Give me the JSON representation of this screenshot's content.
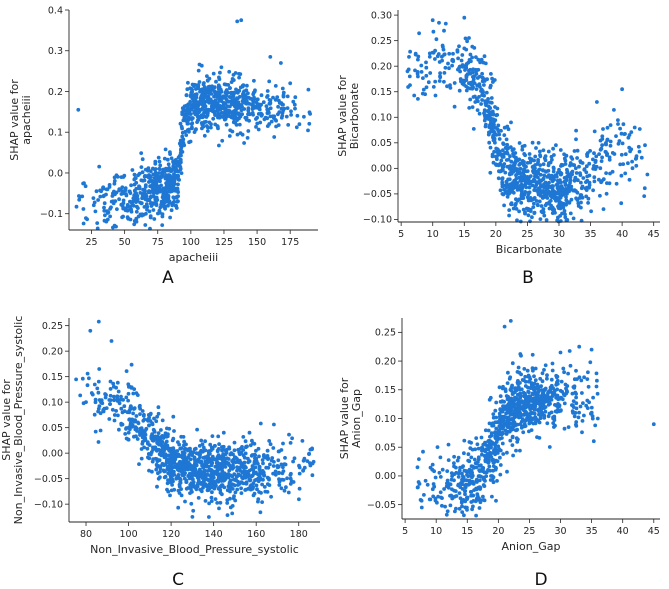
{
  "figure": {
    "point_color": "#1f77d4",
    "axis_color": "#262626",
    "background": "#ffffff"
  },
  "chart_data": [
    {
      "type": "scatter",
      "panel_label": "A",
      "title": "",
      "xlabel": "apacheiii",
      "ylabel": "SHAP value for\napacheiii",
      "ylabel_lines": [
        "SHAP value for",
        "apacheiii"
      ],
      "xlim": [
        8,
        196
      ],
      "ylim": [
        -0.14,
        0.4
      ],
      "xticks": [
        25,
        50,
        75,
        100,
        125,
        150,
        175
      ],
      "yticks": [
        -0.1,
        0.0,
        0.1,
        0.2,
        0.3,
        0.4
      ],
      "xtick_labels": [
        "25",
        "50",
        "75",
        "100",
        "125",
        "150",
        "175"
      ],
      "ytick_labels": [
        "−0.1",
        "0.0",
        "0.1",
        "0.2",
        "0.3",
        "0.4"
      ],
      "grid": false,
      "series": [
        {
          "name": "apacheiii",
          "trend": [
            [
              15,
              -0.06
            ],
            [
              35,
              -0.075
            ],
            [
              55,
              -0.06
            ],
            [
              75,
              -0.04
            ],
            [
              90,
              -0.02
            ],
            [
              96,
              0.15
            ],
            [
              110,
              0.17
            ],
            [
              130,
              0.17
            ],
            [
              160,
              0.16
            ],
            [
              190,
              0.15
            ]
          ],
          "x_range": [
            12,
            190
          ],
          "n_points": 1100,
          "spread": 0.035,
          "outliers": [
            [
              15,
              0.155
            ],
            [
              138,
              0.375
            ],
            [
              135,
              0.372
            ],
            [
              160,
              0.285
            ],
            [
              168,
              0.27
            ],
            [
              175,
              0.22
            ],
            [
              190,
              0.145
            ],
            [
              180,
              0.112
            ]
          ]
        }
      ]
    },
    {
      "type": "scatter",
      "panel_label": "B",
      "title": "",
      "xlabel": "Bicarbonate",
      "ylabel": "SHAP value for\nBicarbonate",
      "ylabel_lines": [
        "SHAP value for",
        "Bicarbonate"
      ],
      "xlim": [
        4.5,
        46
      ],
      "ylim": [
        -0.105,
        0.31
      ],
      "xticks": [
        5,
        10,
        15,
        20,
        25,
        30,
        35,
        40,
        45
      ],
      "yticks": [
        -0.1,
        -0.05,
        0.0,
        0.05,
        0.1,
        0.15,
        0.2,
        0.25,
        0.3
      ],
      "xtick_labels": [
        "5",
        "10",
        "15",
        "20",
        "25",
        "30",
        "35",
        "40",
        "45"
      ],
      "ytick_labels": [
        "−0.10",
        "−0.05",
        "0.00",
        "0.05",
        "0.10",
        "0.15",
        "0.20",
        "0.25",
        "0.30"
      ],
      "grid": false,
      "series": [
        {
          "name": "Bicarbonate",
          "trend": [
            [
              6,
              0.19
            ],
            [
              10,
              0.2
            ],
            [
              15,
              0.2
            ],
            [
              18,
              0.15
            ],
            [
              20,
              0.06
            ],
            [
              22,
              -0.02
            ],
            [
              25,
              -0.035
            ],
            [
              30,
              -0.04
            ],
            [
              35,
              -0.02
            ],
            [
              40,
              0.05
            ],
            [
              44,
              0.0
            ]
          ],
          "x_range": [
            6,
            44
          ],
          "n_points": 1000,
          "spread": 0.035,
          "outliers": [
            [
              15,
              0.295
            ],
            [
              10,
              0.29
            ],
            [
              11,
              0.285
            ],
            [
              6,
              0.19
            ],
            [
              44,
              -0.012
            ],
            [
              40,
              0.155
            ],
            [
              36,
              0.13
            ],
            [
              42,
              0.08
            ],
            [
              41,
              0.06
            ]
          ]
        }
      ]
    },
    {
      "type": "scatter",
      "panel_label": "C",
      "title": "",
      "xlabel": "Non_Invasive_Blood_Pressure_systolic",
      "ylabel": "SHAP value for\nNon_Invasive_Blood_Pressure_systolic",
      "ylabel_lines": [
        "SHAP value for",
        "Non_Invasive_Blood_Pressure_systolic"
      ],
      "xlim": [
        72,
        190
      ],
      "ylim": [
        -0.135,
        0.265
      ],
      "xticks": [
        80,
        100,
        120,
        140,
        160,
        180
      ],
      "yticks": [
        -0.1,
        -0.05,
        0.0,
        0.05,
        0.1,
        0.15,
        0.2,
        0.25
      ],
      "xtick_labels": [
        "80",
        "100",
        "120",
        "140",
        "160",
        "180"
      ],
      "ytick_labels": [
        "−0.10",
        "−0.05",
        "0.00",
        "0.05",
        "0.10",
        "0.15",
        "0.20",
        "0.25"
      ],
      "grid": false,
      "series": [
        {
          "name": "Non_Invasive_Blood_Pressure_systolic",
          "trend": [
            [
              75,
              0.12
            ],
            [
              90,
              0.1
            ],
            [
              100,
              0.08
            ],
            [
              110,
              0.03
            ],
            [
              118,
              -0.01
            ],
            [
              125,
              -0.03
            ],
            [
              140,
              -0.035
            ],
            [
              160,
              -0.035
            ],
            [
              185,
              -0.02
            ]
          ],
          "x_range": [
            75,
            187
          ],
          "n_points": 1100,
          "spread": 0.03,
          "outliers": [
            [
              86,
              0.258
            ],
            [
              82,
              0.24
            ],
            [
              92,
              0.22
            ],
            [
              178,
              -0.01
            ],
            [
              187,
              -0.017
            ],
            [
              170,
              -0.025
            ],
            [
              130,
              -0.125
            ],
            [
              80,
              0.1
            ]
          ]
        }
      ]
    },
    {
      "type": "scatter",
      "panel_label": "D",
      "title": "",
      "xlabel": "Anion_Gap",
      "ylabel": "SHAP value for\nAnion_Gap",
      "ylabel_lines": [
        "SHAP value for",
        "Anion_Gap"
      ],
      "xlim": [
        4.5,
        46
      ],
      "ylim": [
        -0.075,
        0.275
      ],
      "xticks": [
        5,
        10,
        15,
        20,
        25,
        30,
        35,
        40,
        45
      ],
      "yticks": [
        -0.05,
        0.0,
        0.05,
        0.1,
        0.15,
        0.2,
        0.25
      ],
      "xtick_labels": [
        "5",
        "10",
        "15",
        "20",
        "25",
        "30",
        "35",
        "40",
        "45"
      ],
      "ytick_labels": [
        "−0.05",
        "0.00",
        "0.05",
        "0.10",
        "0.15",
        "0.20",
        "0.25"
      ],
      "grid": false,
      "series": [
        {
          "name": "Anion_Gap",
          "trend": [
            [
              7,
              -0.01
            ],
            [
              10,
              -0.025
            ],
            [
              14,
              -0.02
            ],
            [
              17,
              0.0
            ],
            [
              19,
              0.05
            ],
            [
              21,
              0.1
            ],
            [
              24,
              0.13
            ],
            [
              30,
              0.14
            ],
            [
              36,
              0.12
            ]
          ],
          "x_range": [
            7,
            36
          ],
          "n_points": 950,
          "spread": 0.03,
          "outliers": [
            [
              22,
              0.27
            ],
            [
              21,
              0.26
            ],
            [
              33,
              0.225
            ],
            [
              35,
              0.22
            ],
            [
              30,
              0.215
            ],
            [
              45,
              0.09
            ],
            [
              36,
              0.1
            ],
            [
              7,
              0.015
            ]
          ]
        }
      ]
    }
  ]
}
